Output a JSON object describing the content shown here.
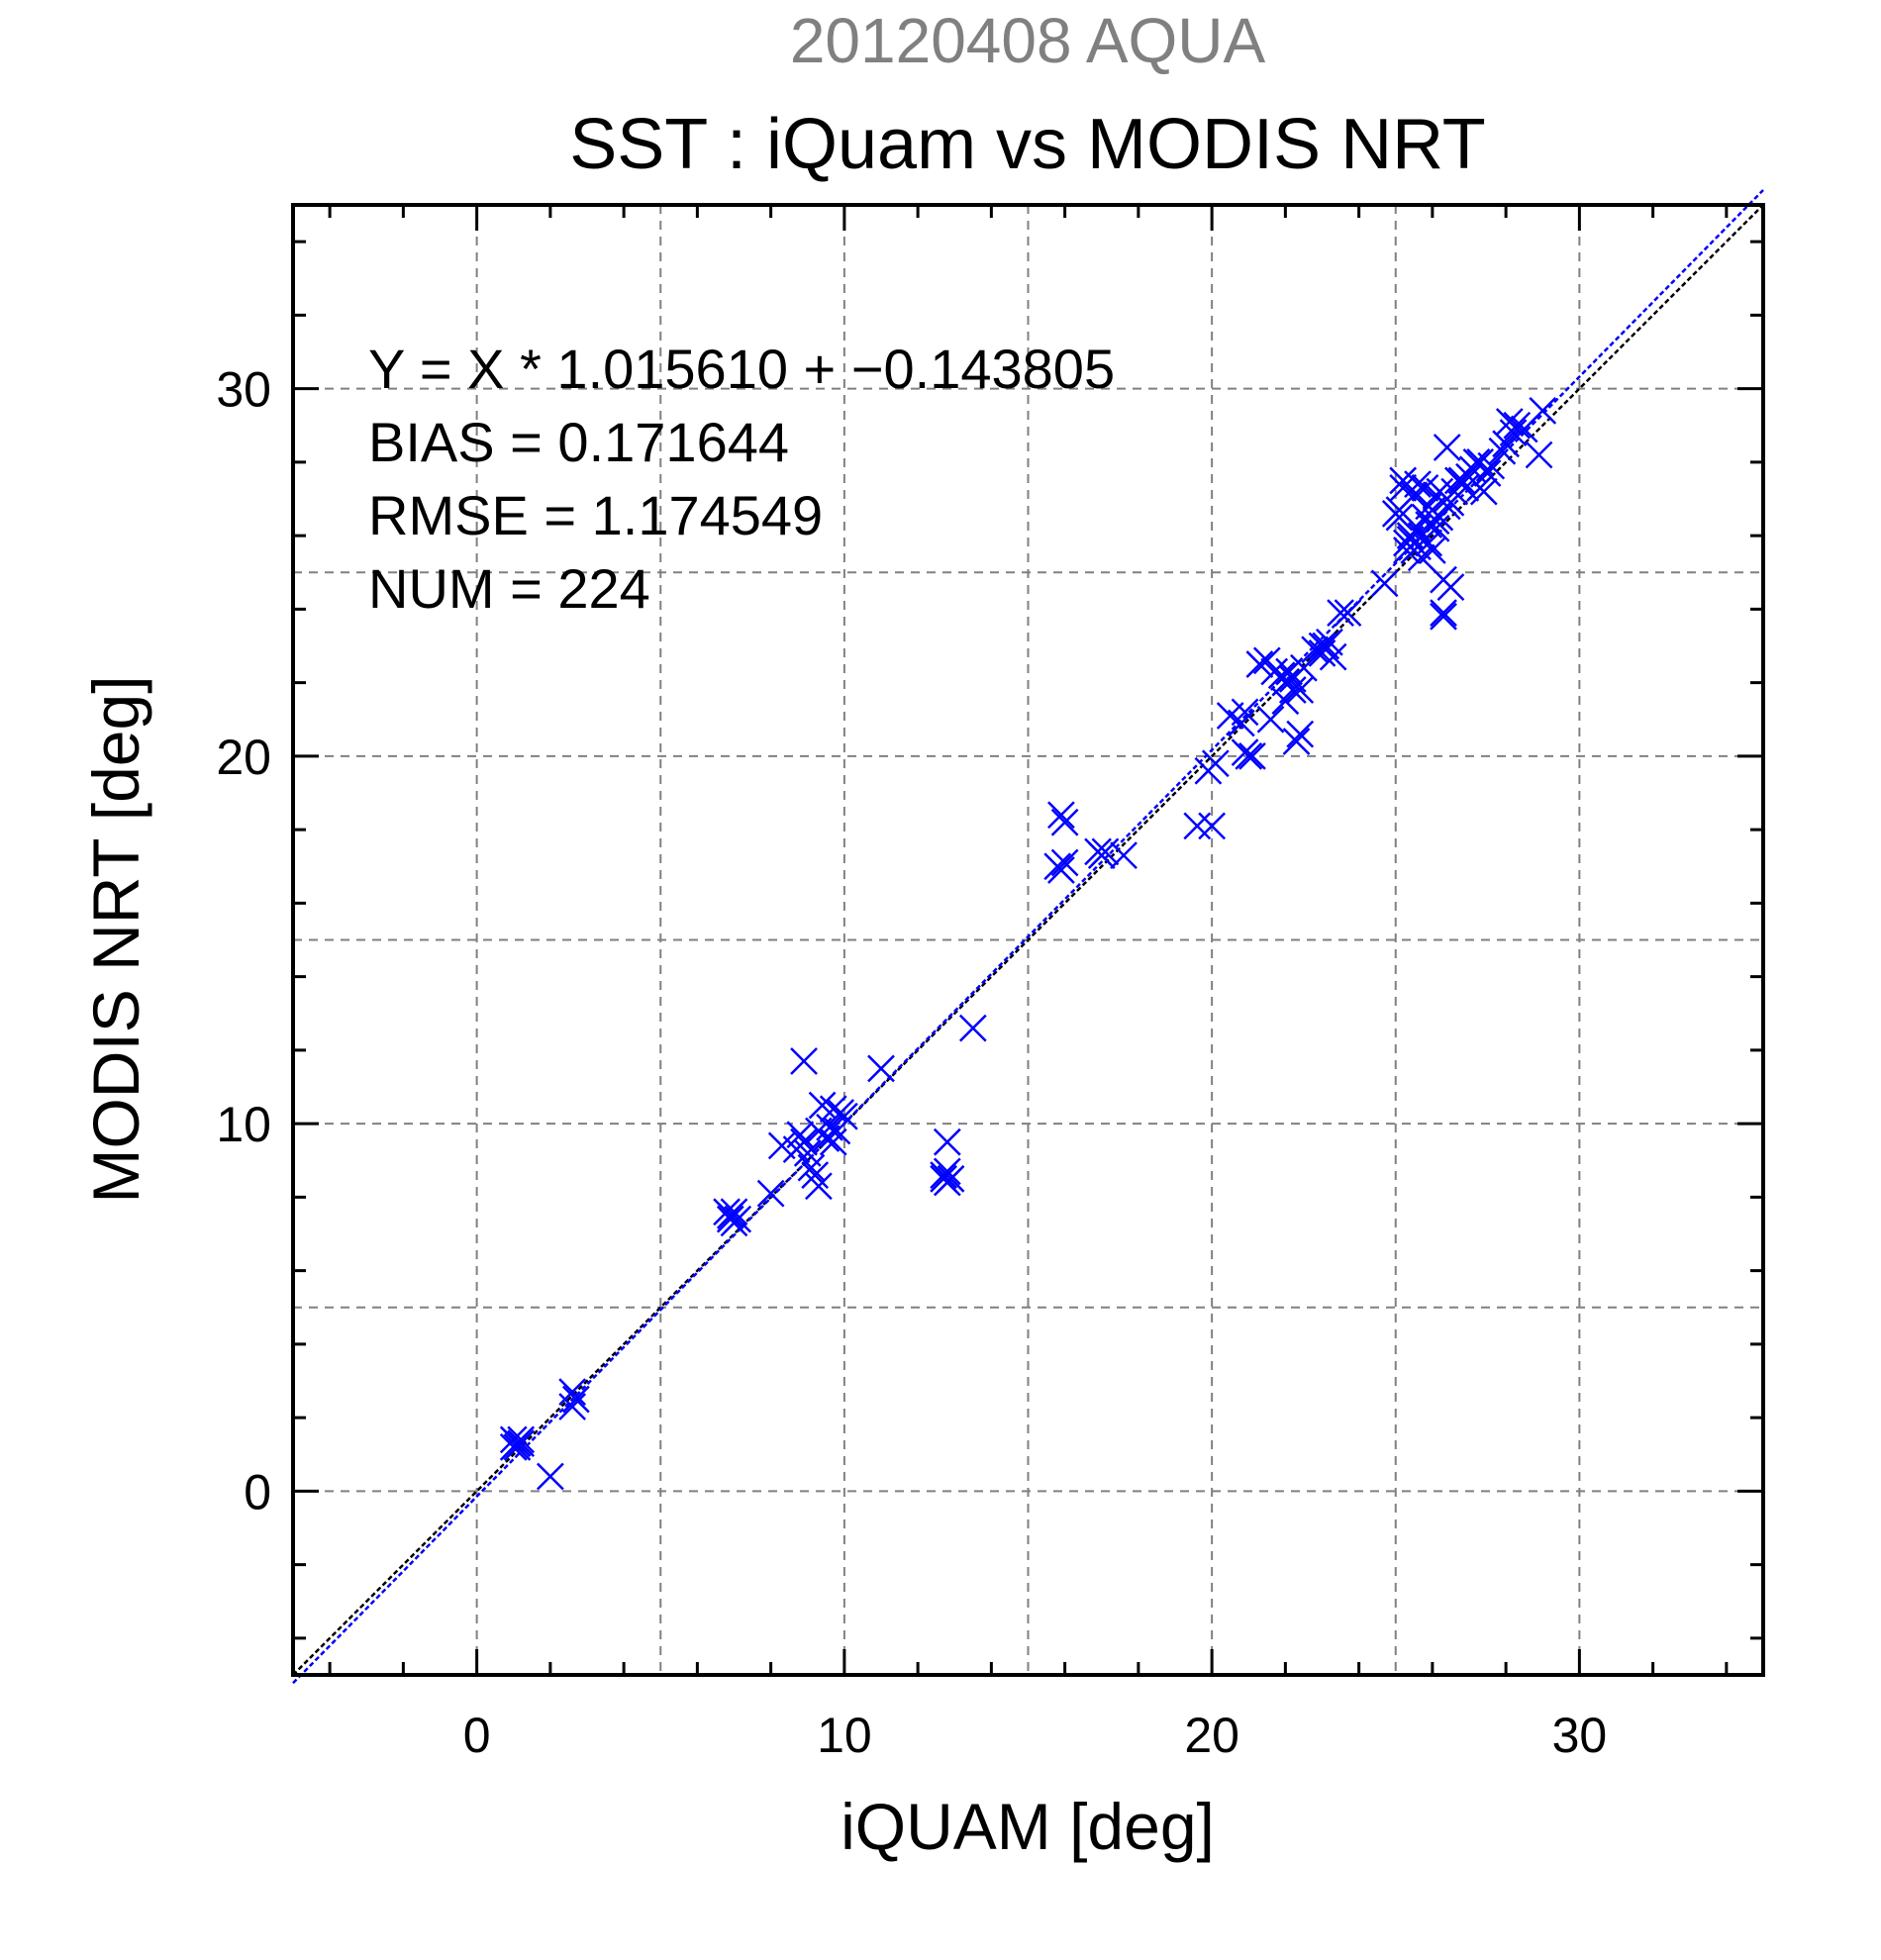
{
  "chart_data": {
    "type": "scatter",
    "subtitle": "20120408 AQUA",
    "title": "SST : iQuam vs MODIS NRT",
    "xlabel": "iQUAM [deg]",
    "ylabel": "MODIS NRT [deg]",
    "xlim": [
      -5,
      35
    ],
    "ylim": [
      -5,
      35
    ],
    "xticks": [
      "0",
      "10",
      "20",
      "30"
    ],
    "yticks": [
      "0",
      "10",
      "20",
      "30"
    ],
    "grid": true,
    "stats": [
      "Y = X * 1.015610 + −0.143805",
      "BIAS = 0.171644",
      "RMSE = 1.174549",
      "NUM = 224"
    ],
    "reference_lines": [
      {
        "kind": "one-to-one",
        "slope": 1.0,
        "intercept": 0.0,
        "color": "#000000"
      },
      {
        "kind": "regression",
        "slope": 1.01561,
        "intercept": -0.143805,
        "color": "#0000ff"
      }
    ],
    "marker_color": "#0000ff",
    "series": [
      {
        "marker": "x",
        "points": [
          [
            1.0,
            1.4
          ],
          [
            1.1,
            1.3
          ],
          [
            1.1,
            1.2
          ],
          [
            1.2,
            1.3
          ],
          [
            1.0,
            1.2
          ],
          [
            1.2,
            1.4
          ],
          [
            2.0,
            0.4
          ],
          [
            2.6,
            2.7
          ],
          [
            2.6,
            2.3
          ],
          [
            2.7,
            2.5
          ],
          [
            6.8,
            7.6
          ],
          [
            6.9,
            7.5
          ],
          [
            7.0,
            7.3
          ],
          [
            6.9,
            7.4
          ],
          [
            7.0,
            7.6
          ],
          [
            7.1,
            7.4
          ],
          [
            8.0,
            8.1
          ],
          [
            8.3,
            9.4
          ],
          [
            8.7,
            9.3
          ],
          [
            8.8,
            9.7
          ],
          [
            8.9,
            9.5
          ],
          [
            8.9,
            11.7
          ],
          [
            9.0,
            9.2
          ],
          [
            9.1,
            8.8
          ],
          [
            9.2,
            8.6
          ],
          [
            9.3,
            8.3
          ],
          [
            9.3,
            9.8
          ],
          [
            9.4,
            10.5
          ],
          [
            9.5,
            9.6
          ],
          [
            9.6,
            9.9
          ],
          [
            9.7,
            9.5
          ],
          [
            9.7,
            10.4
          ],
          [
            9.8,
            9.8
          ],
          [
            9.9,
            10.3
          ],
          [
            10.0,
            10.2
          ],
          [
            11.0,
            11.5
          ],
          [
            12.7,
            8.6
          ],
          [
            12.8,
            8.4
          ],
          [
            12.8,
            9.5
          ],
          [
            12.8,
            8.7
          ],
          [
            12.9,
            8.5
          ],
          [
            12.7,
            8.5
          ],
          [
            13.5,
            12.6
          ],
          [
            15.8,
            17.0
          ],
          [
            15.9,
            16.9
          ],
          [
            15.9,
            18.4
          ],
          [
            16.0,
            18.2
          ],
          [
            16.0,
            17.1
          ],
          [
            16.9,
            17.4
          ],
          [
            17.0,
            17.3
          ],
          [
            17.1,
            17.4
          ],
          [
            17.6,
            17.3
          ],
          [
            19.6,
            18.1
          ],
          [
            19.9,
            19.6
          ],
          [
            20.0,
            18.1
          ],
          [
            20.1,
            19.8
          ],
          [
            20.5,
            21.1
          ],
          [
            20.8,
            20.9
          ],
          [
            20.9,
            21.2
          ],
          [
            20.9,
            20.1
          ],
          [
            21.0,
            20.0
          ],
          [
            21.1,
            20.0
          ],
          [
            21.3,
            22.5
          ],
          [
            21.5,
            22.6
          ],
          [
            21.6,
            21.0
          ],
          [
            21.7,
            22.3
          ],
          [
            21.9,
            22.2
          ],
          [
            22.0,
            22.0
          ],
          [
            22.0,
            21.5
          ],
          [
            22.1,
            22.3
          ],
          [
            22.2,
            21.8
          ],
          [
            22.2,
            22.1
          ],
          [
            22.3,
            20.4
          ],
          [
            22.4,
            20.6
          ],
          [
            22.4,
            21.8
          ],
          [
            22.5,
            22.4
          ],
          [
            22.8,
            22.9
          ],
          [
            23.0,
            23.0
          ],
          [
            23.0,
            22.8
          ],
          [
            23.1,
            23.0
          ],
          [
            23.2,
            23.1
          ],
          [
            23.3,
            22.7
          ],
          [
            23.5,
            23.9
          ],
          [
            23.7,
            23.9
          ],
          [
            24.7,
            24.7
          ],
          [
            25.0,
            26.6
          ],
          [
            25.1,
            26.7
          ],
          [
            25.1,
            26.5
          ],
          [
            25.2,
            27.3
          ],
          [
            25.2,
            27.5
          ],
          [
            25.3,
            25.8
          ],
          [
            25.3,
            25.6
          ],
          [
            25.4,
            26.0
          ],
          [
            25.4,
            25.9
          ],
          [
            25.5,
            27.1
          ],
          [
            25.5,
            25.6
          ],
          [
            25.6,
            26.2
          ],
          [
            25.6,
            27.4
          ],
          [
            25.6,
            25.7
          ],
          [
            25.7,
            26.0
          ],
          [
            25.7,
            25.4
          ],
          [
            25.8,
            26.5
          ],
          [
            25.8,
            27.3
          ],
          [
            25.9,
            25.8
          ],
          [
            25.9,
            26.3
          ],
          [
            25.9,
            26.8
          ],
          [
            26.0,
            25.6
          ],
          [
            26.0,
            26.7
          ],
          [
            26.1,
            26.2
          ],
          [
            26.1,
            27.1
          ],
          [
            26.1,
            26.4
          ],
          [
            26.2,
            26.5
          ],
          [
            26.2,
            27.2
          ],
          [
            26.3,
            23.8
          ],
          [
            26.3,
            23.9
          ],
          [
            26.3,
            24.8
          ],
          [
            26.4,
            26.8
          ],
          [
            26.4,
            28.4
          ],
          [
            26.4,
            27.0
          ],
          [
            26.5,
            24.6
          ],
          [
            26.5,
            26.9
          ],
          [
            26.6,
            27.2
          ],
          [
            26.7,
            27.5
          ],
          [
            26.8,
            27.5
          ],
          [
            26.9,
            27.3
          ],
          [
            27.0,
            27.6
          ],
          [
            27.1,
            27.8
          ],
          [
            27.2,
            28.0
          ],
          [
            27.3,
            27.3
          ],
          [
            27.3,
            28.0
          ],
          [
            27.4,
            27.2
          ],
          [
            27.5,
            27.7
          ],
          [
            27.6,
            27.9
          ],
          [
            27.9,
            28.3
          ],
          [
            28.0,
            28.5
          ],
          [
            28.1,
            29.1
          ],
          [
            28.2,
            28.8
          ],
          [
            28.3,
            29.0
          ],
          [
            28.5,
            28.9
          ],
          [
            28.9,
            28.2
          ],
          [
            29.0,
            29.4
          ]
        ]
      }
    ]
  }
}
